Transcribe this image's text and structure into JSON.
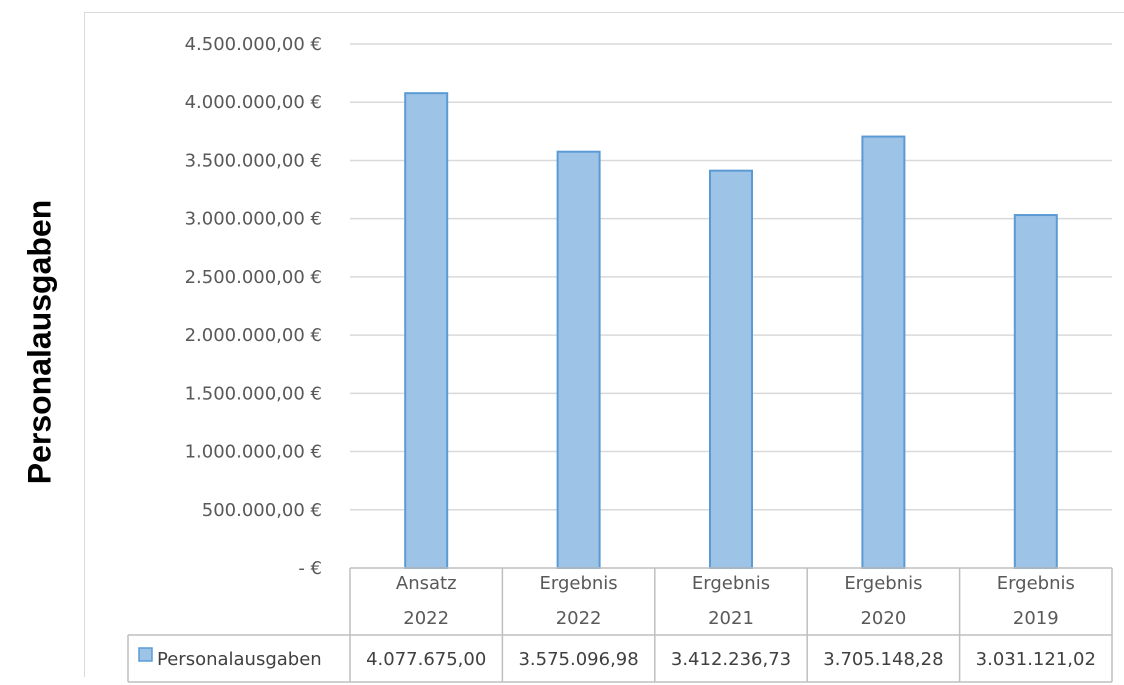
{
  "chart_data": {
    "type": "bar",
    "categories": [
      [
        "Ansatz",
        "2022"
      ],
      [
        "Ergebnis",
        "2022"
      ],
      [
        "Ergebnis",
        "2021"
      ],
      [
        "Ergebnis",
        "2020"
      ],
      [
        "Ergebnis",
        "2019"
      ]
    ],
    "series": [
      {
        "name": "Personalausgaben",
        "values": [
          4077675.0,
          3575096.98,
          3412236.73,
          3705148.28,
          3031121.02
        ],
        "value_labels": [
          "4.077.675,00",
          "3.575.096,98",
          "3.412.236,73",
          "3.705.148,28",
          "3.031.121,02"
        ],
        "color": "#9dc3e6",
        "border_color": "#5b9bd5"
      }
    ],
    "ylabel": "Personalausgaben",
    "ylim": [
      0,
      4500000
    ],
    "yticks": [
      0,
      500000,
      1000000,
      1500000,
      2000000,
      2500000,
      3000000,
      3500000,
      4000000,
      4500000
    ],
    "ytick_labels": [
      "-  €",
      "500.000,00 €",
      "1.000.000,00 €",
      "1.500.000,00 €",
      "2.000.000,00 €",
      "2.500.000,00 €",
      "3.000.000,00 €",
      "3.500.000,00 €",
      "4.000.000,00 €",
      "4.500.000,00 €"
    ],
    "grid": true,
    "legend": "data-table",
    "colors": {
      "gridline": "#d9d9d9",
      "table_border": "#bfbfbf"
    }
  }
}
